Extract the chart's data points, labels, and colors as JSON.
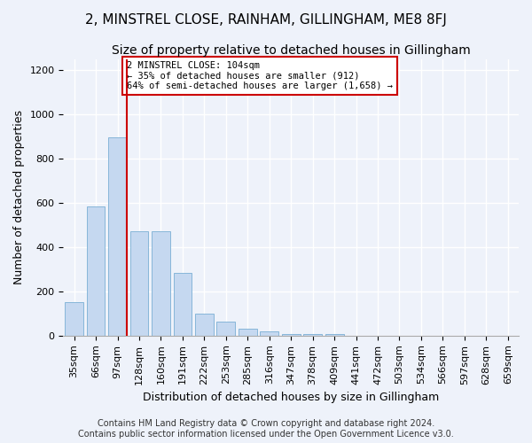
{
  "title": "2, MINSTREL CLOSE, RAINHAM, GILLINGHAM, ME8 8FJ",
  "subtitle": "Size of property relative to detached houses in Gillingham",
  "xlabel": "Distribution of detached houses by size in Gillingham",
  "ylabel": "Number of detached properties",
  "footer_line1": "Contains HM Land Registry data © Crown copyright and database right 2024.",
  "footer_line2": "Contains public sector information licensed under the Open Government Licence v3.0.",
  "categories": [
    "35sqm",
    "66sqm",
    "97sqm",
    "128sqm",
    "160sqm",
    "191sqm",
    "222sqm",
    "253sqm",
    "285sqm",
    "316sqm",
    "347sqm",
    "378sqm",
    "409sqm",
    "441sqm",
    "472sqm",
    "503sqm",
    "534sqm",
    "566sqm",
    "597sqm",
    "628sqm",
    "659sqm"
  ],
  "values": [
    152,
    585,
    895,
    470,
    470,
    285,
    100,
    62,
    30,
    18,
    8,
    8,
    8,
    0,
    0,
    0,
    0,
    0,
    0,
    0,
    0
  ],
  "bar_color": "#c5d8f0",
  "bar_edge_color": "#7aafd4",
  "vline_color": "#cc0000",
  "annotation_text": "2 MINSTREL CLOSE: 104sqm\n← 35% of detached houses are smaller (912)\n64% of semi-detached houses are larger (1,658) →",
  "annotation_box_color": "white",
  "annotation_box_edge_color": "#cc0000",
  "ylim": [
    0,
    1250
  ],
  "yticks": [
    0,
    200,
    400,
    600,
    800,
    1000,
    1200
  ],
  "background_color": "#eef2fa",
  "grid_color": "white",
  "title_fontsize": 11,
  "subtitle_fontsize": 10,
  "ylabel_fontsize": 9,
  "xlabel_fontsize": 9,
  "tick_fontsize": 8,
  "footer_fontsize": 7
}
